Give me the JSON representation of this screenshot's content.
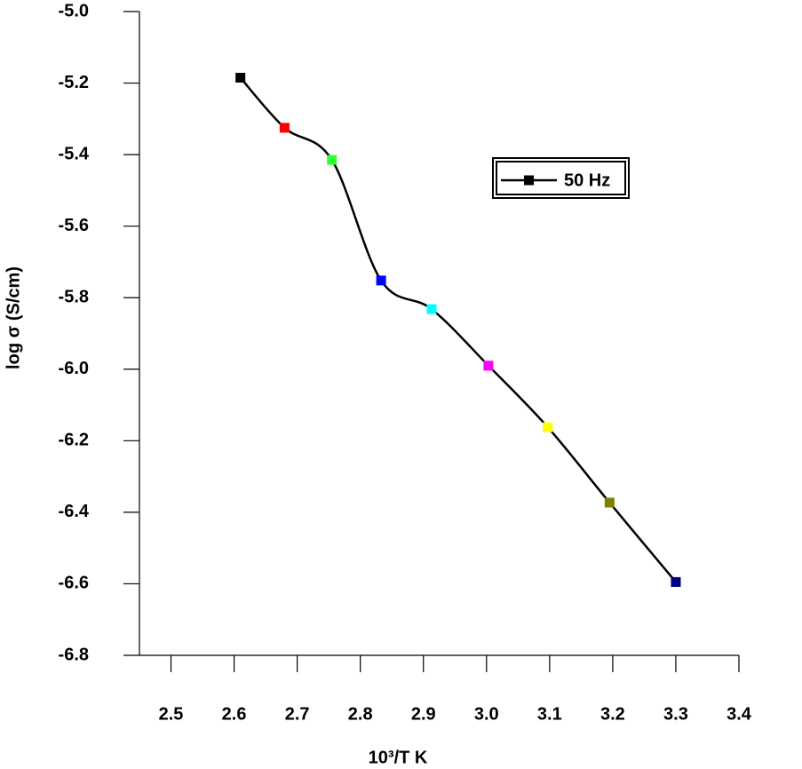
{
  "chart_data": {
    "type": "line",
    "x_label": "10³/T K",
    "y_label": "log σ (S/cm)",
    "x": [
      2.61,
      2.68,
      2.755,
      2.833,
      2.913,
      3.003,
      3.097,
      3.195,
      3.3
    ],
    "series": [
      {
        "name": "50 Hz",
        "color": "#000000",
        "point_colors": [
          "#000000",
          "#ff0000",
          "#33ff33",
          "#0000ff",
          "#00ffff",
          "#ff00ff",
          "#ffff00",
          "#808000",
          "#000080"
        ],
        "values": [
          -5.185,
          -5.325,
          -5.415,
          -5.752,
          -5.832,
          -5.99,
          -6.162,
          -6.373,
          -6.595
        ]
      }
    ],
    "xlim": [
      2.45,
      3.4
    ],
    "ylim": [
      -6.8,
      -5.0
    ],
    "xticks": [
      2.5,
      2.6,
      2.7,
      2.8,
      2.9,
      {
        "value": 3.0,
        "label": "3.0"
      },
      3.1,
      3.2,
      3.3,
      3.4
    ],
    "yticks": [
      {
        "value": -5.0,
        "label": "-5.0"
      },
      -5.2,
      -5.4,
      -5.6,
      -5.8,
      {
        "value": -6.0,
        "label": "-6.0"
      },
      -6.2,
      -6.4,
      -6.6,
      -6.8
    ],
    "legend_position": "upper right",
    "smooth": true
  }
}
